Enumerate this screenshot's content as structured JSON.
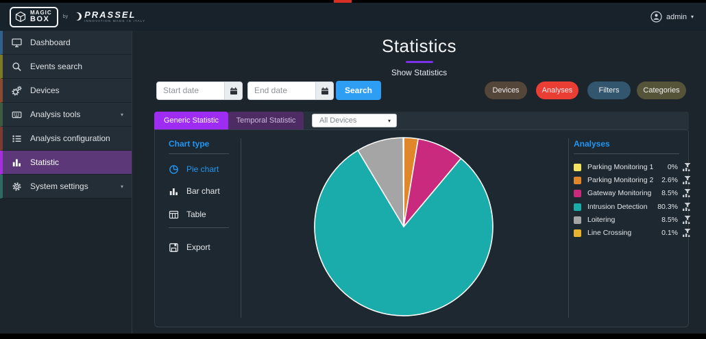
{
  "header": {
    "brand_primary_line1": "MAGIC",
    "brand_primary_line2": "BOX",
    "brand_by": "by",
    "brand_secondary": "PRASSEL",
    "brand_tagline": "INNOVATION MADE IN ITALY",
    "user_name": "admin",
    "top_marker_color": "#d93025"
  },
  "sidebar": {
    "items": [
      {
        "label": "Dashboard",
        "stripe_color": "#31608a",
        "active": false
      },
      {
        "label": "Events search",
        "stripe_color": "#7d7823",
        "active": false
      },
      {
        "label": "Devices",
        "stripe_color": "#8a4a2d",
        "active": false
      },
      {
        "label": "Analysis tools",
        "stripe_color": "#3c5c44",
        "active": false,
        "expandable": true
      },
      {
        "label": "Analysis configuration",
        "stripe_color": "#7b3b33",
        "active": false
      },
      {
        "label": "Statistic",
        "stripe_color": "#a72ee0",
        "active": true
      },
      {
        "label": "System settings",
        "stripe_color": "#2e6a5f",
        "active": false,
        "expandable": true
      }
    ]
  },
  "page": {
    "title": "Statistics",
    "subtitle": "Show Statistics"
  },
  "filters": {
    "start_date_placeholder": "Start date",
    "end_date_placeholder": "End date",
    "search_label": "Search",
    "pills": [
      {
        "label": "Devices",
        "color": "#55463a"
      },
      {
        "label": "Analyses",
        "color": "#ea3d33"
      },
      {
        "label": "Filters",
        "color": "#33566f"
      },
      {
        "label": "Categories",
        "color": "#555439"
      }
    ]
  },
  "tabs": [
    {
      "label": "Generic Statistic",
      "active": true
    },
    {
      "label": "Temporal Statistic",
      "active": false
    }
  ],
  "device_select": {
    "value": "All Devices"
  },
  "chart_type_panel": {
    "title": "Chart type",
    "items": [
      {
        "label": "Pie chart",
        "active": true
      },
      {
        "label": "Bar chart",
        "active": false
      },
      {
        "label": "Table",
        "active": false
      }
    ],
    "export_label": "Export"
  },
  "analyses_panel": {
    "title": "Analyses"
  },
  "chart_data": {
    "type": "pie",
    "title": "Analyses",
    "categories": [
      "Parking Monitoring 1",
      "Parking Monitoring 2",
      "Gateway Monitoring",
      "Intrusion Detection",
      "Loitering",
      "Line Crossing"
    ],
    "values": [
      0,
      2.6,
      8.5,
      80.3,
      8.5,
      0.1
    ],
    "labels": [
      "0%",
      "2.6%",
      "8.5%",
      "80.3%",
      "8.5%",
      "0.1%"
    ],
    "unit": "%",
    "colors": [
      "#f2e45e",
      "#e0862b",
      "#c92a7d",
      "#1aacab",
      "#a5a5a5",
      "#e8b22e"
    ],
    "slice_border_color": "#ffffff",
    "legend_position": "right",
    "start_angle_deg": 0,
    "direction": "clockwise"
  }
}
